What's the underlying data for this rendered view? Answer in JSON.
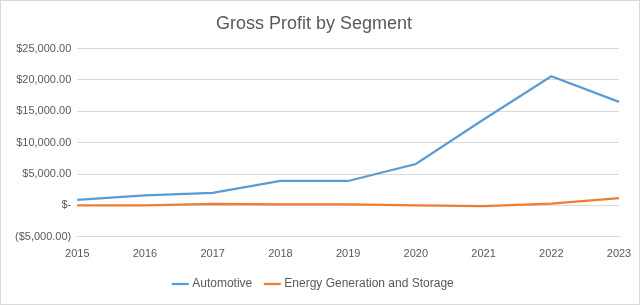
{
  "chart_data": {
    "type": "line",
    "title": "Gross Profit by Segment",
    "categories": [
      "2015",
      "2016",
      "2017",
      "2018",
      "2019",
      "2020",
      "2021",
      "2022",
      "2023"
    ],
    "series": [
      {
        "name": "Automotive",
        "color": "#5b9bd5",
        "values": [
          900,
          1600,
          2000,
          3900,
          3900,
          6600,
          13700,
          20600,
          16500
        ]
      },
      {
        "name": "Energy Generation and Storage",
        "color": "#ed7d31",
        "values": [
          0,
          0,
          250,
          150,
          150,
          0,
          -100,
          300,
          1150
        ]
      }
    ],
    "ylim": [
      -5000,
      25000
    ],
    "yticks": [
      {
        "value": -5000,
        "label": "($5,000.00)"
      },
      {
        "value": 0,
        "label": "$-"
      },
      {
        "value": 5000,
        "label": "$5,000.00"
      },
      {
        "value": 10000,
        "label": "$10,000.00"
      },
      {
        "value": 15000,
        "label": "$15,000.00"
      },
      {
        "value": 20000,
        "label": "$20,000.00"
      },
      {
        "value": 25000,
        "label": "$25,000.00"
      }
    ],
    "grid": true,
    "legend": "bottom"
  }
}
